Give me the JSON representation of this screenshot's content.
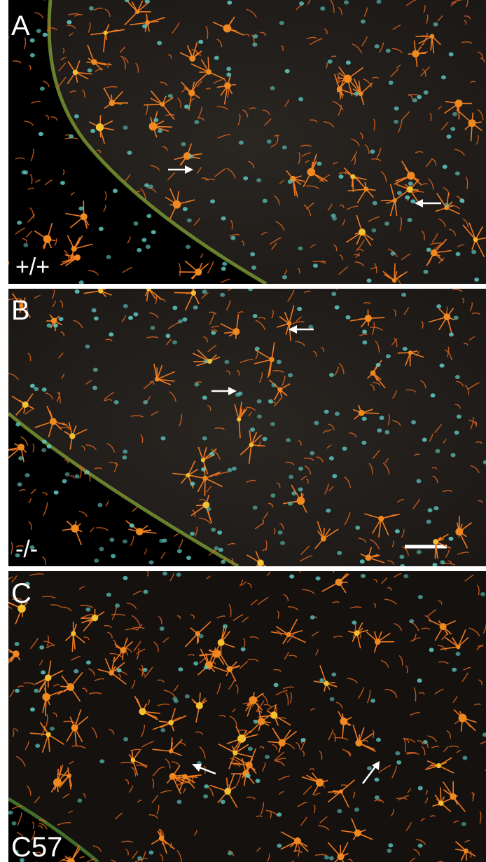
{
  "panels": [
    {
      "label": "A",
      "genotype": "+/+"
    },
    {
      "label": "B",
      "genotype": "-/-"
    },
    {
      "label": "C",
      "genotype": "C57"
    }
  ]
}
